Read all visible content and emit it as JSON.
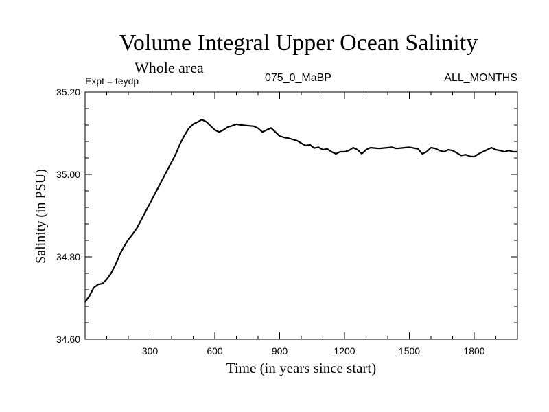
{
  "chart_data": {
    "type": "line",
    "title": "Volume Integral Upper Ocean Salinity",
    "subtitle": "Whole area",
    "expt_label": "Expt = teydp",
    "center_label": "075_0_MaBP",
    "right_label": "ALL_MONTHS",
    "xlabel": "Time (in years since start)",
    "ylabel": "Salinity (in PSU)",
    "xlim": [
      0,
      2000
    ],
    "ylim": [
      34.6,
      35.2
    ],
    "x_ticks": [
      300,
      600,
      900,
      1200,
      1500,
      1800
    ],
    "x_tick_labels": [
      "300",
      "600",
      "900",
      "1200",
      "1500",
      "1800"
    ],
    "y_ticks": [
      34.6,
      34.8,
      35.0,
      35.2
    ],
    "y_tick_labels": [
      "34.60",
      "34.80",
      "35.00",
      "35.20"
    ],
    "grid": false,
    "series": [
      {
        "name": "Salinity",
        "x": [
          0,
          20,
          40,
          60,
          80,
          100,
          120,
          140,
          160,
          180,
          200,
          220,
          240,
          260,
          280,
          300,
          320,
          340,
          360,
          380,
          400,
          420,
          440,
          460,
          480,
          500,
          520,
          540,
          560,
          580,
          600,
          620,
          640,
          660,
          680,
          700,
          720,
          740,
          760,
          780,
          800,
          820,
          840,
          860,
          880,
          900,
          920,
          940,
          960,
          980,
          1000,
          1020,
          1040,
          1060,
          1080,
          1100,
          1120,
          1140,
          1160,
          1180,
          1200,
          1220,
          1240,
          1260,
          1280,
          1300,
          1320,
          1340,
          1360,
          1380,
          1400,
          1420,
          1440,
          1460,
          1480,
          1500,
          1520,
          1540,
          1560,
          1580,
          1600,
          1620,
          1640,
          1660,
          1680,
          1700,
          1720,
          1740,
          1760,
          1780,
          1800,
          1820,
          1840,
          1860,
          1880,
          1900,
          1920,
          1940,
          1960,
          1980,
          2000
        ],
        "values": [
          34.69,
          34.705,
          34.725,
          34.733,
          34.735,
          34.745,
          34.76,
          34.78,
          34.805,
          34.825,
          34.842,
          34.855,
          34.87,
          34.89,
          34.91,
          34.93,
          34.95,
          34.97,
          34.99,
          35.01,
          35.03,
          35.05,
          35.075,
          35.095,
          35.112,
          35.122,
          35.127,
          35.133,
          35.128,
          35.118,
          35.108,
          35.103,
          35.108,
          35.115,
          35.118,
          35.122,
          35.12,
          35.119,
          35.118,
          35.117,
          35.112,
          35.103,
          35.108,
          35.113,
          35.103,
          35.093,
          35.09,
          35.088,
          35.085,
          35.082,
          35.076,
          35.07,
          35.072,
          35.064,
          35.066,
          35.06,
          35.062,
          35.055,
          35.05,
          35.055,
          35.055,
          35.058,
          35.065,
          35.06,
          35.05,
          35.06,
          35.065,
          35.064,
          35.063,
          35.064,
          35.065,
          35.066,
          35.063,
          35.064,
          35.065,
          35.066,
          35.064,
          35.062,
          35.05,
          35.055,
          35.065,
          35.063,
          35.058,
          35.055,
          35.06,
          35.058,
          35.052,
          35.046,
          35.048,
          35.044,
          35.043,
          35.05,
          35.055,
          35.06,
          35.065,
          35.06,
          35.058,
          35.055,
          35.058,
          35.055,
          35.055
        ]
      }
    ]
  }
}
